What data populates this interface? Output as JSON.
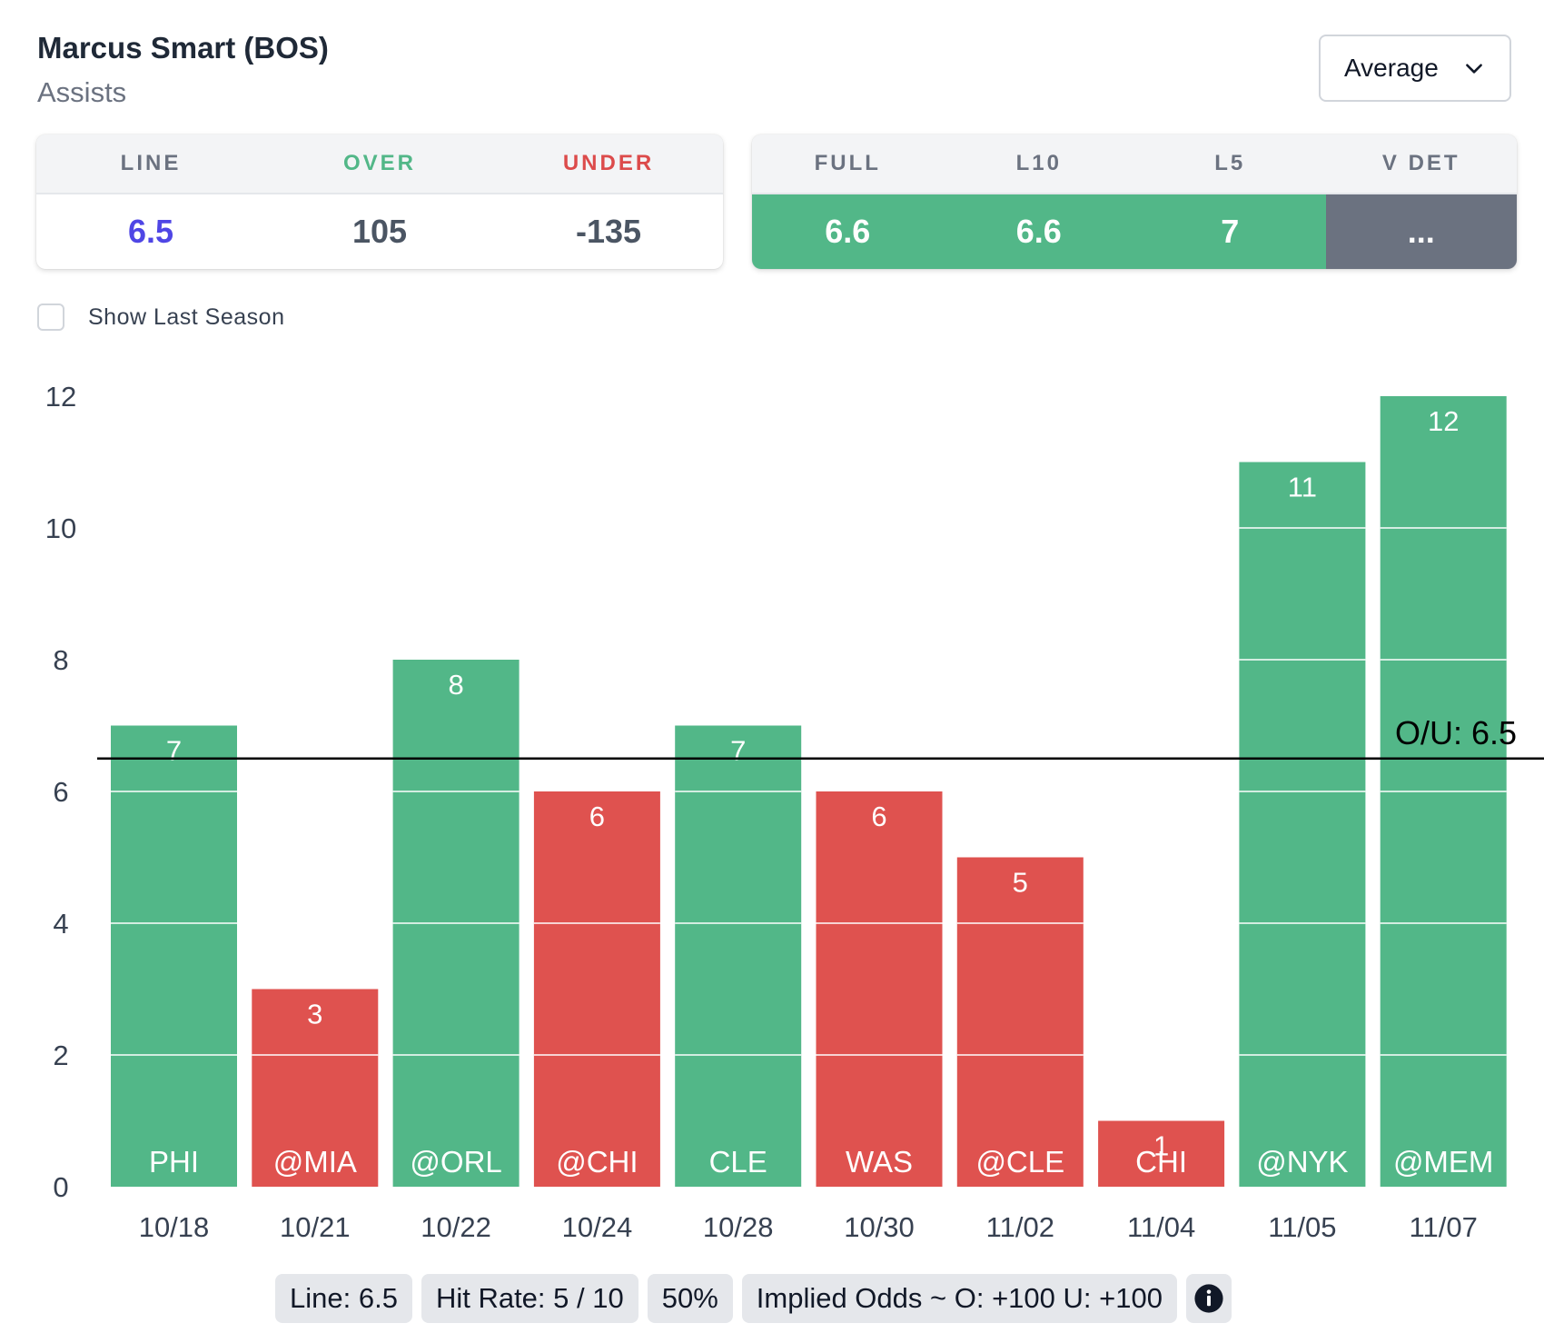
{
  "header": {
    "title": "Marcus Smart (BOS)",
    "subtitle": "Assists",
    "dropdown_value": "Average"
  },
  "odds_card": {
    "headers": [
      "LINE",
      "OVER",
      "UNDER"
    ],
    "values": [
      "6.5",
      "105",
      "-135"
    ],
    "colors": {
      "line": "#4f46e5",
      "over_header": "#52b788",
      "under_header": "#dc4b4b",
      "value": "#4b5563"
    }
  },
  "averages_card": {
    "headers": [
      "FULL",
      "L10",
      "L5",
      "V DET"
    ],
    "values": [
      "6.6",
      "6.6",
      "7",
      "..."
    ],
    "colors": {
      "good": "#52b788",
      "neutral": "#6b7280"
    }
  },
  "toggle": {
    "label": "Show Last Season",
    "checked": false
  },
  "chart_data": {
    "type": "bar",
    "categories": [
      "10/18",
      "10/21",
      "10/22",
      "10/24",
      "10/28",
      "10/30",
      "11/02",
      "11/04",
      "11/05",
      "11/07"
    ],
    "opponents": [
      "PHI",
      "@MIA",
      "@ORL",
      "@CHI",
      "CLE",
      "WAS",
      "@CLE",
      "CHI",
      "@NYK",
      "@MEM"
    ],
    "values": [
      7,
      3,
      8,
      6,
      7,
      6,
      5,
      1,
      11,
      12
    ],
    "value_labels": [
      "7",
      "3",
      "8",
      "6",
      "7",
      "6",
      "5",
      "1",
      "11",
      "12"
    ],
    "y_ticks": [
      0,
      2,
      4,
      6,
      8,
      10,
      12
    ],
    "y_tick_labels": [
      "0",
      "2",
      "4",
      "6",
      "8",
      "10",
      "12"
    ],
    "ylim": [
      0,
      12
    ],
    "line": 6.5,
    "line_label": "O/U: 6.5",
    "colors": {
      "over": "#52b788",
      "under": "#df524f",
      "line": "#000000"
    }
  },
  "footer": {
    "line": "Line: 6.5",
    "hit_rate": "Hit Rate: 5 / 10",
    "percent": "50%",
    "implied_odds": "Implied Odds ~ O: +100 U: +100",
    "info_icon": "info-icon"
  }
}
